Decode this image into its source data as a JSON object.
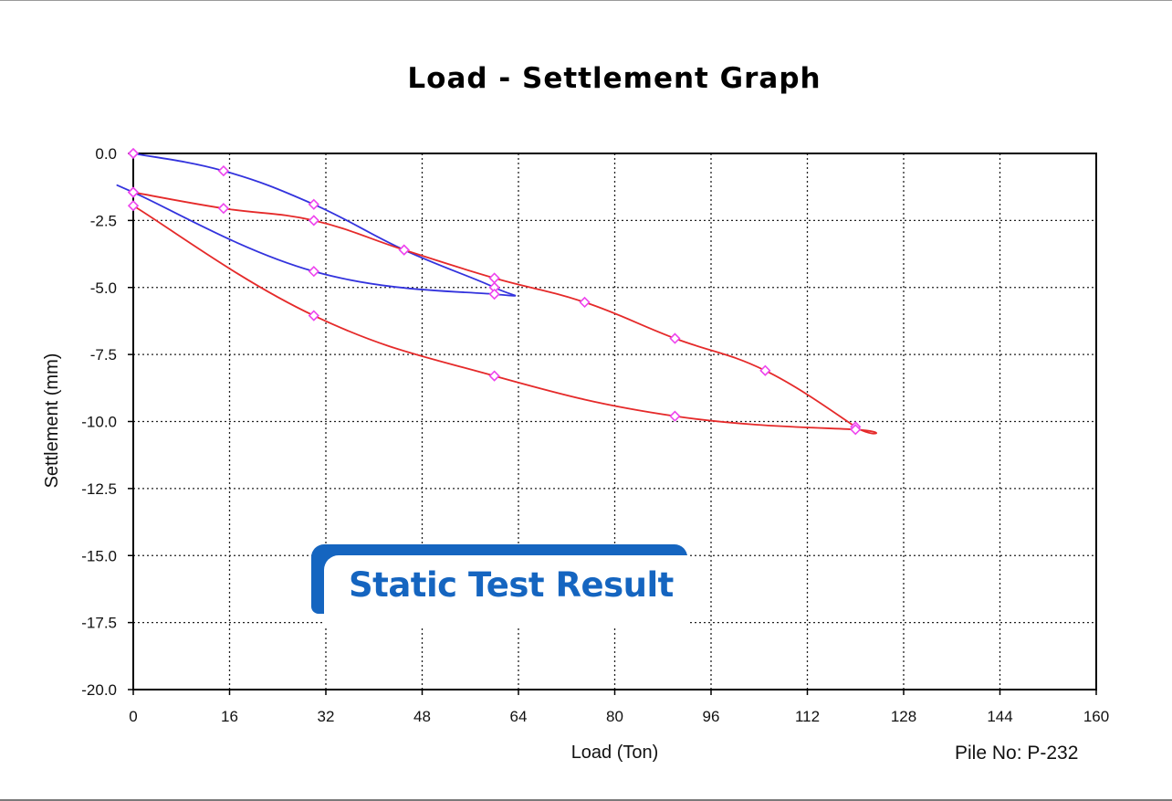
{
  "chart_data": {
    "type": "line",
    "title": "Load - Settlement Graph",
    "xlabel": "Load (Ton)",
    "ylabel": "Settlement (mm)",
    "xlim": [
      0,
      160
    ],
    "ylim": [
      -20,
      0
    ],
    "x_ticks": [
      0,
      16,
      32,
      48,
      64,
      80,
      96,
      112,
      128,
      144,
      160
    ],
    "y_ticks": [
      "0.0",
      "-2.5",
      "-5.0",
      "-7.5",
      "-10.0",
      "-12.5",
      "-15.0",
      "-17.5",
      "-20.0"
    ],
    "grid": true,
    "series": [
      {
        "color": "#3333dd",
        "x": [
          0,
          15,
          30,
          45,
          60,
          60,
          30,
          0,
          0
        ],
        "y": [
          0.0,
          -0.65,
          -1.9,
          -3.6,
          -5.0,
          -5.25,
          -4.4,
          -1.45,
          -1.45
        ]
      },
      {
        "color": "#e52a2a",
        "x": [
          0,
          15,
          30,
          45,
          60,
          75,
          90,
          105,
          120,
          120,
          90,
          60,
          30,
          0
        ],
        "y": [
          -1.45,
          -2.05,
          -2.5,
          -3.6,
          -4.65,
          -5.55,
          -6.9,
          -8.1,
          -10.2,
          -10.3,
          -9.8,
          -8.3,
          -6.05,
          -1.95
        ]
      }
    ],
    "marker_color": "#ee44ee",
    "annotations": [
      "Pile No: P-232"
    ]
  },
  "badge": {
    "text": "Static Test Result",
    "color": "#1565c0"
  }
}
